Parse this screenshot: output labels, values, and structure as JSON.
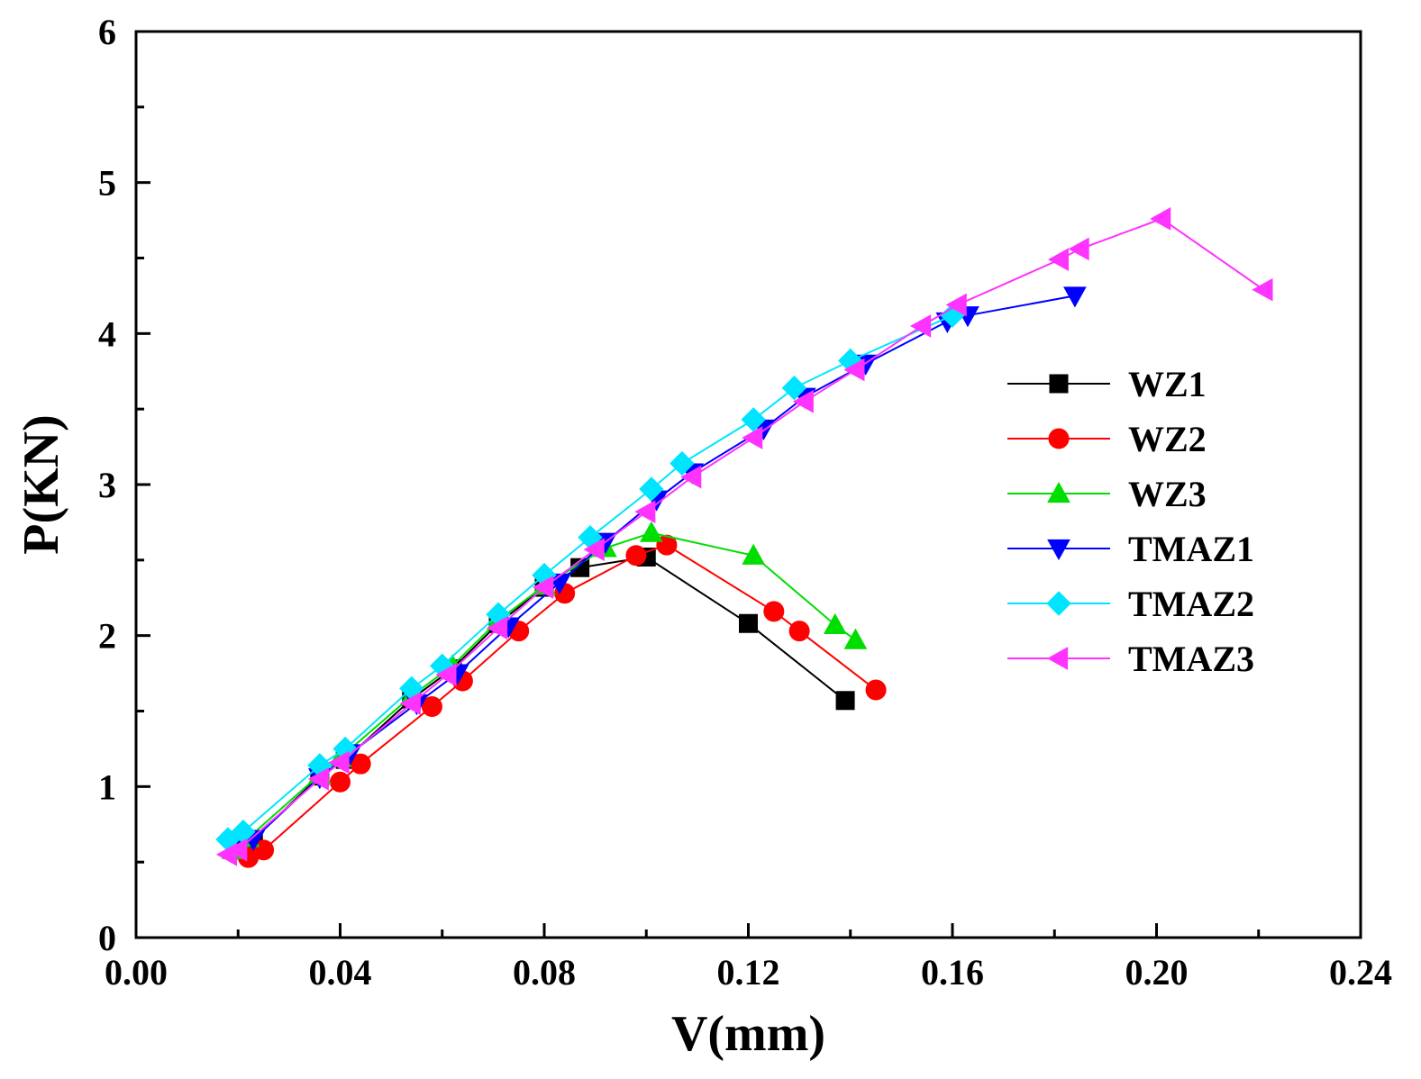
{
  "chart_data": {
    "type": "line",
    "xlabel": "V(mm)",
    "ylabel": "P(KN)",
    "xlim": [
      0.0,
      0.24
    ],
    "ylim": [
      0,
      6
    ],
    "x_ticks": [
      "0.00",
      "0.04",
      "0.08",
      "0.12",
      "0.16",
      "0.20",
      "0.24"
    ],
    "y_ticks": [
      "0",
      "1",
      "2",
      "3",
      "4",
      "5",
      "6"
    ],
    "grid": false,
    "legend_position": "right",
    "series": [
      {
        "name": "WZ1",
        "color": "#000000",
        "marker": "square",
        "points": [
          [
            0.02,
            0.58
          ],
          [
            0.023,
            0.65
          ],
          [
            0.036,
            1.07
          ],
          [
            0.041,
            1.18
          ],
          [
            0.054,
            1.58
          ],
          [
            0.062,
            1.78
          ],
          [
            0.071,
            2.08
          ],
          [
            0.08,
            2.32
          ],
          [
            0.087,
            2.45
          ],
          [
            0.1,
            2.52
          ],
          [
            0.12,
            2.08
          ],
          [
            0.139,
            1.57
          ]
        ]
      },
      {
        "name": "WZ2",
        "color": "#ff0000",
        "marker": "circle",
        "points": [
          [
            0.022,
            0.53
          ],
          [
            0.025,
            0.58
          ],
          [
            0.04,
            1.03
          ],
          [
            0.044,
            1.15
          ],
          [
            0.058,
            1.53
          ],
          [
            0.064,
            1.7
          ],
          [
            0.075,
            2.03
          ],
          [
            0.084,
            2.28
          ],
          [
            0.098,
            2.53
          ],
          [
            0.104,
            2.6
          ],
          [
            0.125,
            2.16
          ],
          [
            0.13,
            2.03
          ],
          [
            0.145,
            1.64
          ]
        ]
      },
      {
        "name": "WZ3",
        "color": "#00dd00",
        "marker": "triangle-up",
        "points": [
          [
            0.019,
            0.58
          ],
          [
            0.022,
            0.66
          ],
          [
            0.036,
            1.08
          ],
          [
            0.04,
            1.19
          ],
          [
            0.054,
            1.6
          ],
          [
            0.062,
            1.8
          ],
          [
            0.071,
            2.1
          ],
          [
            0.08,
            2.33
          ],
          [
            0.092,
            2.58
          ],
          [
            0.101,
            2.68
          ],
          [
            0.121,
            2.53
          ],
          [
            0.137,
            2.07
          ],
          [
            0.141,
            1.97
          ]
        ]
      },
      {
        "name": "TMAZ1",
        "color": "#0000ff",
        "marker": "triangle-down",
        "points": [
          [
            0.019,
            0.58
          ],
          [
            0.023,
            0.65
          ],
          [
            0.036,
            1.06
          ],
          [
            0.042,
            1.22
          ],
          [
            0.055,
            1.55
          ],
          [
            0.063,
            1.75
          ],
          [
            0.073,
            2.06
          ],
          [
            0.083,
            2.35
          ],
          [
            0.092,
            2.62
          ],
          [
            0.102,
            2.9
          ],
          [
            0.109,
            3.08
          ],
          [
            0.123,
            3.37
          ],
          [
            0.131,
            3.58
          ],
          [
            0.143,
            3.8
          ],
          [
            0.159,
            4.08
          ],
          [
            0.163,
            4.12
          ],
          [
            0.184,
            4.25
          ]
        ]
      },
      {
        "name": "TMAZ2",
        "color": "#00e5ff",
        "marker": "diamond",
        "points": [
          [
            0.018,
            0.65
          ],
          [
            0.021,
            0.7
          ],
          [
            0.036,
            1.14
          ],
          [
            0.041,
            1.25
          ],
          [
            0.054,
            1.65
          ],
          [
            0.06,
            1.8
          ],
          [
            0.071,
            2.14
          ],
          [
            0.08,
            2.4
          ],
          [
            0.089,
            2.65
          ],
          [
            0.101,
            2.97
          ],
          [
            0.107,
            3.14
          ],
          [
            0.121,
            3.43
          ],
          [
            0.129,
            3.64
          ],
          [
            0.14,
            3.82
          ],
          [
            0.16,
            4.12
          ]
        ]
      },
      {
        "name": "TMAZ3",
        "color": "#ff33ff",
        "marker": "triangle-left",
        "points": [
          [
            0.018,
            0.55
          ],
          [
            0.02,
            0.58
          ],
          [
            0.036,
            1.05
          ],
          [
            0.04,
            1.16
          ],
          [
            0.054,
            1.55
          ],
          [
            0.061,
            1.74
          ],
          [
            0.071,
            2.05
          ],
          [
            0.08,
            2.32
          ],
          [
            0.09,
            2.57
          ],
          [
            0.1,
            2.82
          ],
          [
            0.109,
            3.05
          ],
          [
            0.121,
            3.31
          ],
          [
            0.131,
            3.55
          ],
          [
            0.141,
            3.76
          ],
          [
            0.154,
            4.05
          ],
          [
            0.161,
            4.19
          ],
          [
            0.181,
            4.49
          ],
          [
            0.185,
            4.56
          ],
          [
            0.201,
            4.76
          ],
          [
            0.221,
            4.29
          ]
        ]
      }
    ]
  }
}
